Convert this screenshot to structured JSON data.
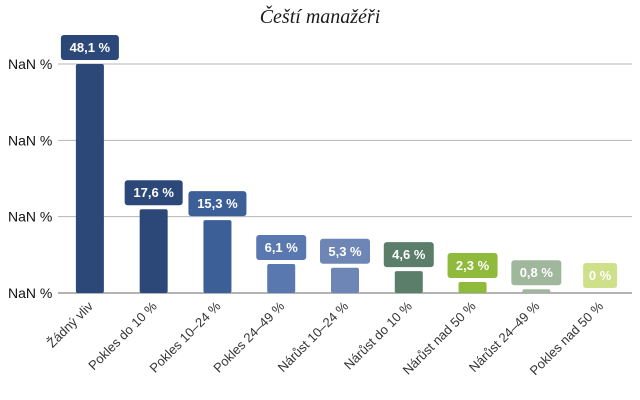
{
  "chart_data": {
    "type": "bar",
    "title": "Čeští manažéři",
    "categories": [
      "Žádný vliv",
      "Pokles do 10 %",
      "Pokles 10–24 %",
      "Pokles 24–49 %",
      "Nárůst 10–24 %",
      "Nárůst do 10 %",
      "Nárůst nad 50 %",
      "Nárůst 24–49 %",
      "Pokles nad 50 %"
    ],
    "values": [
      48.1,
      17.6,
      15.3,
      6.1,
      5.3,
      4.6,
      2.3,
      0.8,
      0
    ],
    "value_labels": [
      "48,1 %",
      "17,6 %",
      "15,3 %",
      "6,1 %",
      "5,3 %",
      "4,6 %",
      "2,3 %",
      "0,8 %",
      "0 %"
    ],
    "colors": [
      "#2b4879",
      "#2b4879",
      "#3d5f98",
      "#5a78b0",
      "#6e86b6",
      "#5a7e6a",
      "#8fba3c",
      "#9fb89c",
      "#cfe08a"
    ],
    "ytick_labels": [
      "NaN %",
      "NaN %",
      "NaN %",
      "NaN %"
    ],
    "ylim": [
      0,
      48.1
    ],
    "grid": true,
    "legend": "none"
  }
}
